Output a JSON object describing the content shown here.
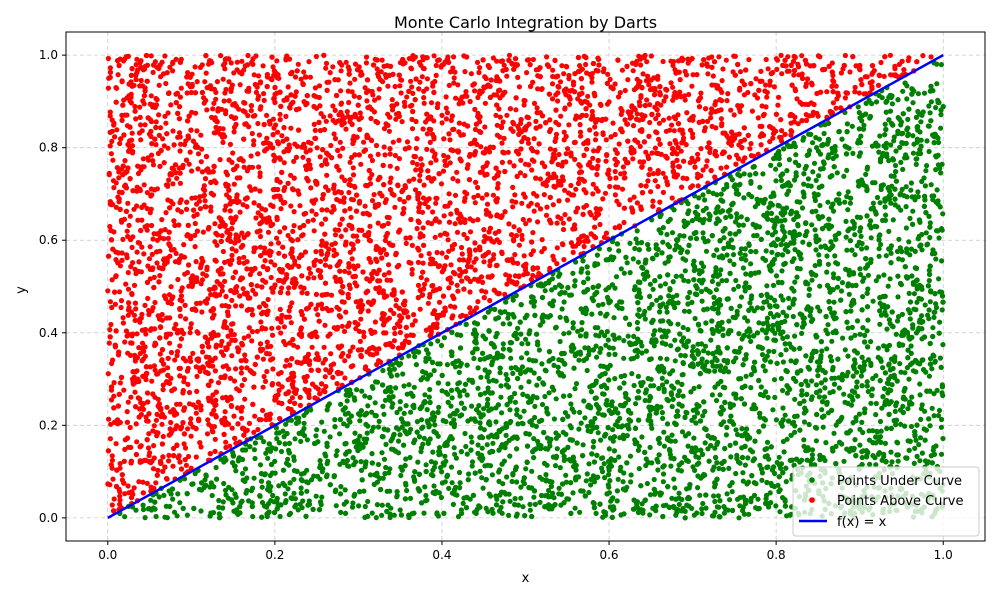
{
  "chart_data": {
    "type": "scatter",
    "title": "Monte Carlo Integration by Darts",
    "xlabel": "x",
    "ylabel": "y",
    "xlim": [
      -0.05,
      1.05
    ],
    "ylim": [
      -0.05,
      1.05
    ],
    "x_ticks": [
      0.0,
      0.2,
      0.4,
      0.6,
      0.8,
      1.0
    ],
    "y_ticks": [
      0.0,
      0.2,
      0.4,
      0.6,
      0.8,
      1.0
    ],
    "x_tick_labels": [
      "0.0",
      "0.2",
      "0.4",
      "0.6",
      "0.8",
      "1.0"
    ],
    "y_tick_labels": [
      "0.0",
      "0.2",
      "0.4",
      "0.6",
      "0.8",
      "1.0"
    ],
    "grid": true,
    "legend_position": "lower-right",
    "series": [
      {
        "name": "Points Under Curve",
        "kind": "scatter",
        "color": "#008000",
        "rule": "y <= x",
        "x_range": [
          0,
          1
        ],
        "y_range": [
          0,
          1
        ],
        "approx_count": 5000
      },
      {
        "name": "Points Above Curve",
        "kind": "scatter",
        "color": "#ff0000",
        "rule": "y > x",
        "x_range": [
          0,
          1
        ],
        "y_range": [
          0,
          1
        ],
        "approx_count": 5000
      },
      {
        "name": "f(x) = x",
        "kind": "line",
        "color": "#0000ff",
        "x": [
          0,
          1
        ],
        "y": [
          0,
          1
        ]
      }
    ]
  }
}
